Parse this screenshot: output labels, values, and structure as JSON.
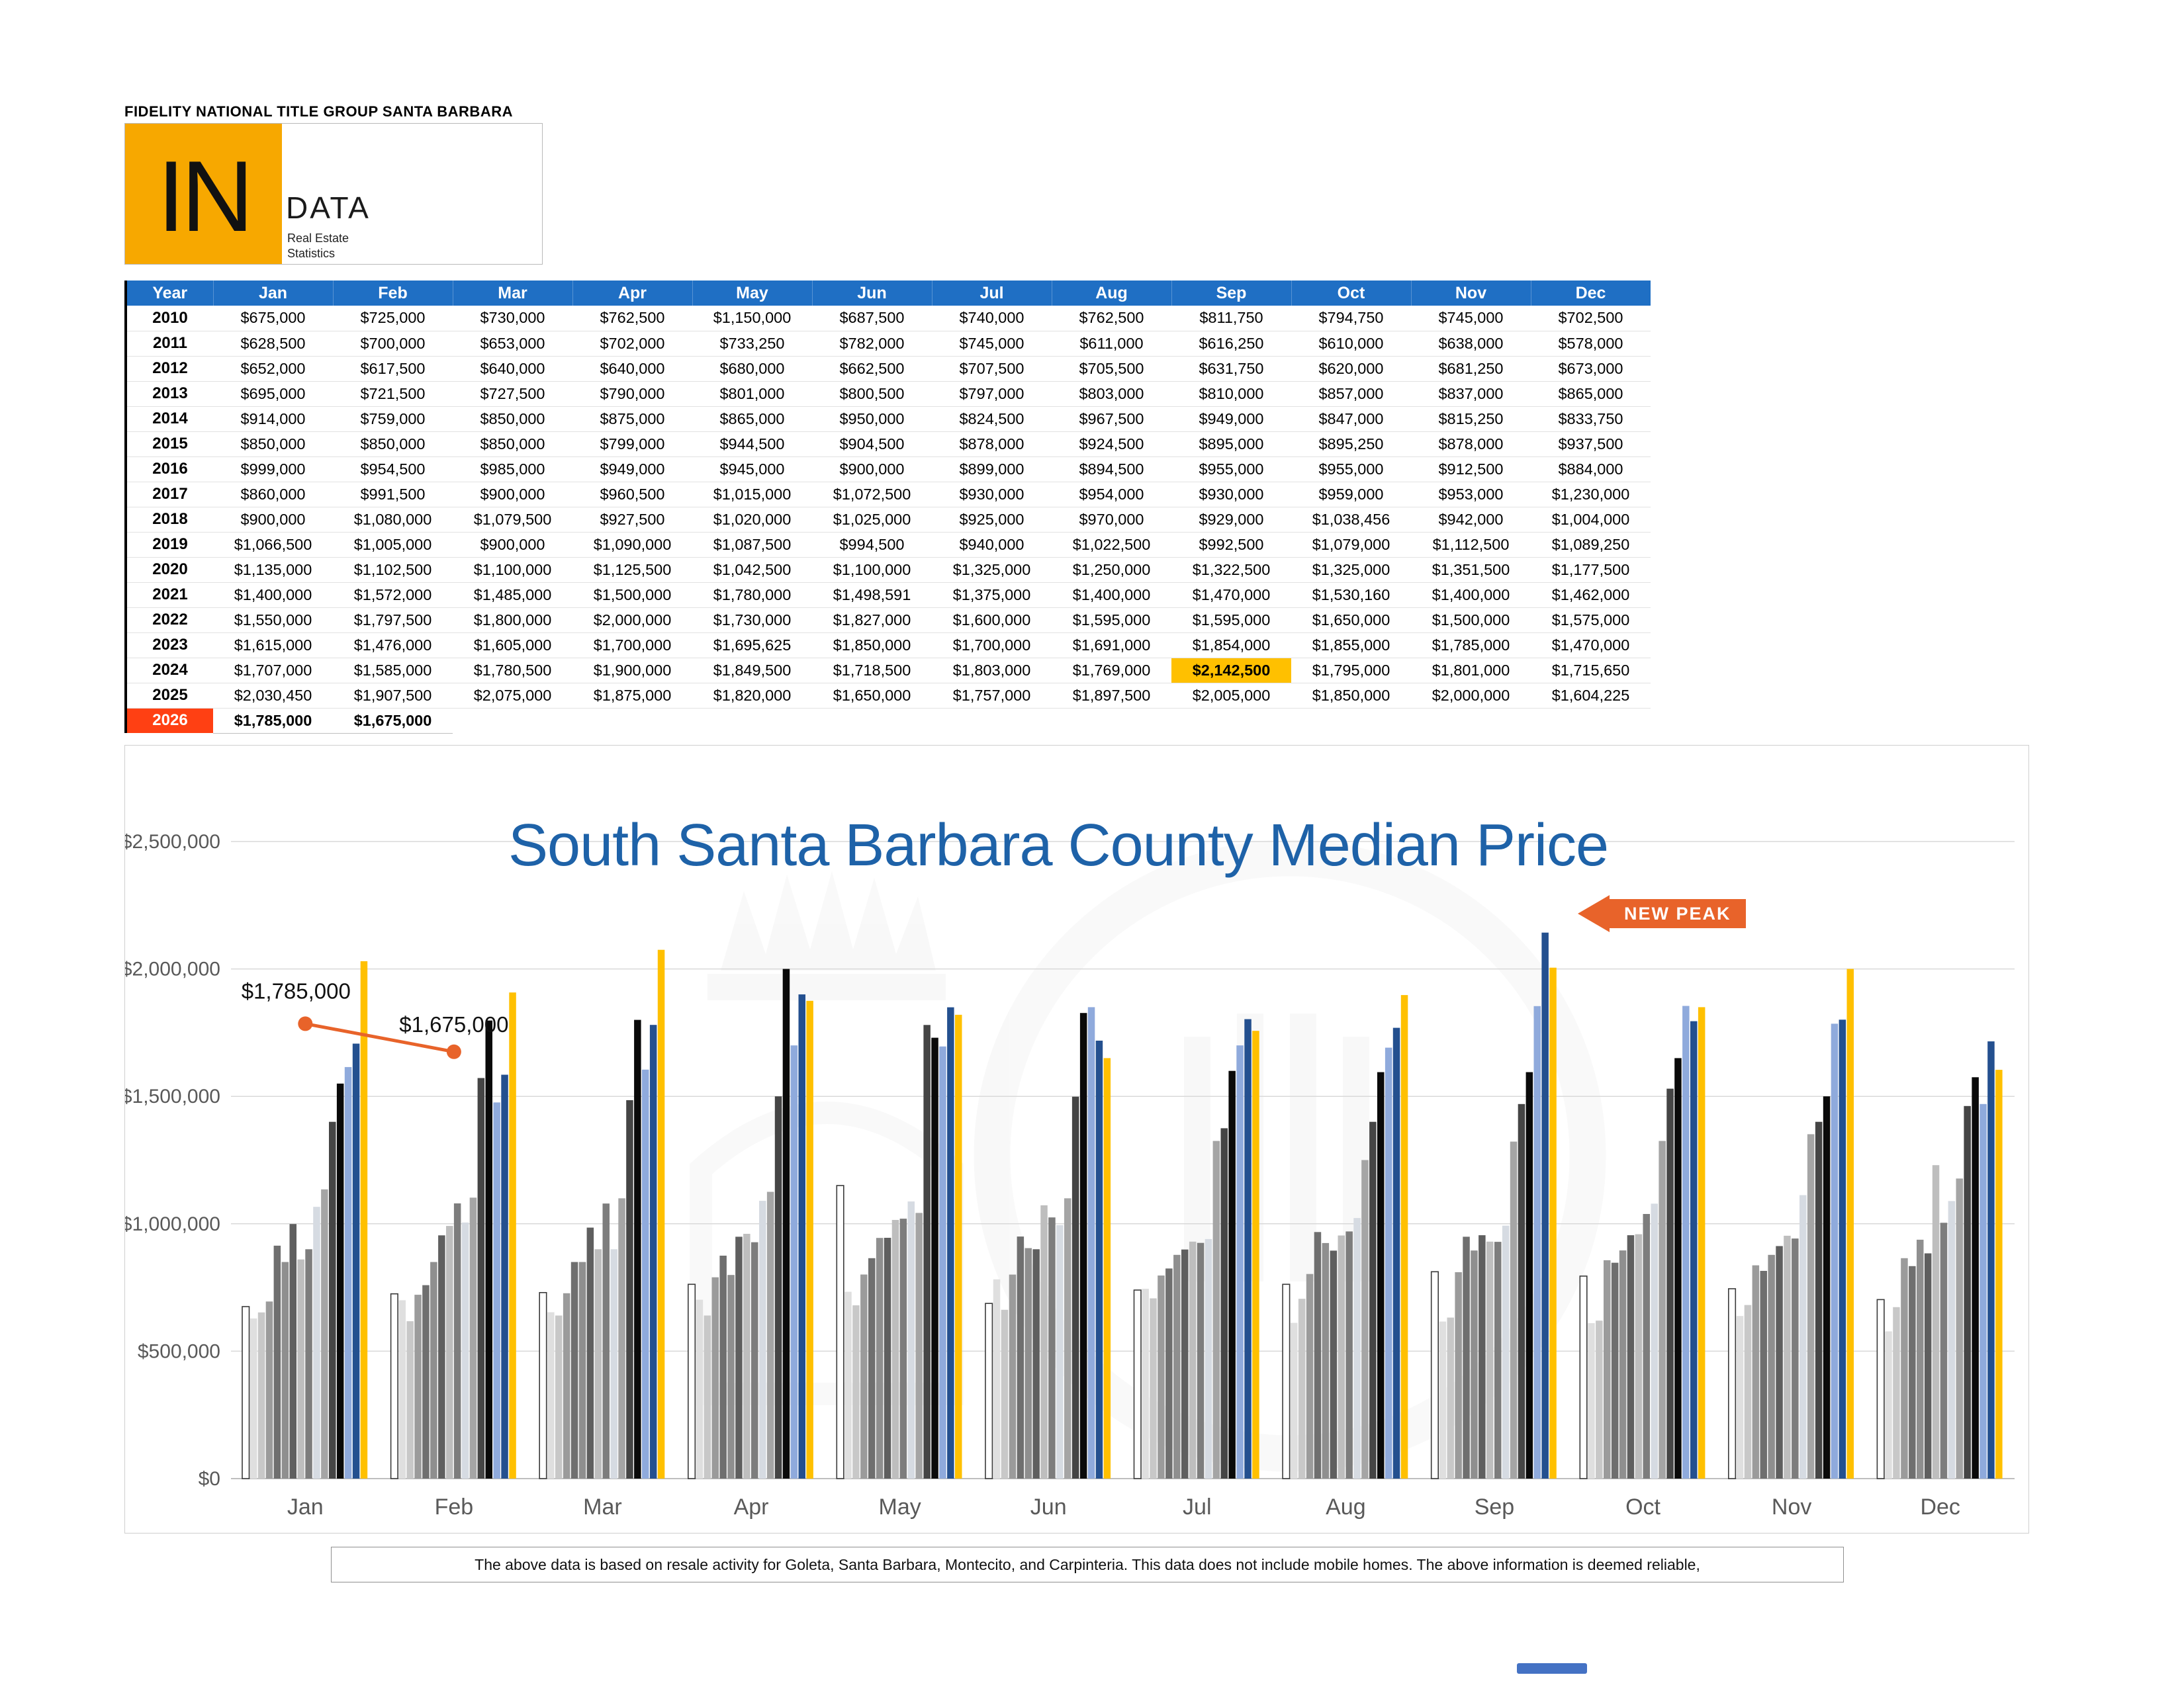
{
  "theme": {
    "header-blue": "#1F6FC4",
    "gold": "#F7A800",
    "gold-hl": "#FFC000",
    "year-red": "#FF4013",
    "title-blue": "#1E62A8",
    "accent-orange": "#E8632A"
  },
  "header": {
    "company": "FIDELITY NATIONAL TITLE GROUP SANTA BARBARA",
    "logo": {
      "initials": "IN",
      "name": "DATA",
      "tagline_line1": "Real Estate",
      "tagline_line2": "Statistics"
    }
  },
  "table": {
    "columns": [
      "Year",
      "Jan",
      "Feb",
      "Mar",
      "Apr",
      "May",
      "Jun",
      "Jul",
      "Aug",
      "Sep",
      "Oct",
      "Nov",
      "Dec"
    ],
    "highlight_cell": {
      "year": "2024",
      "month": "Sep"
    },
    "partial_row_year": "2026"
  },
  "chart_data": {
    "type": "bar",
    "title": "South Santa Barbara County Median Price",
    "categories": [
      "Jan",
      "Feb",
      "Mar",
      "Apr",
      "May",
      "Jun",
      "Jul",
      "Aug",
      "Sep",
      "Oct",
      "Nov",
      "Dec"
    ],
    "ylim": [
      0,
      2500000
    ],
    "yticks": [
      "$0",
      "$500,000",
      "$1,000,000",
      "$1,500,000",
      "$2,000,000",
      "$2,500,000"
    ],
    "grid": true,
    "legend": false,
    "annotations": {
      "new_peak_label": "NEW PEAK",
      "point_labels": [
        "$1,785,000",
        "$1,675,000"
      ]
    },
    "series": [
      {
        "name": "2010",
        "color": "#FFFFFF",
        "outline": true,
        "values": [
          675000,
          725000,
          730000,
          762500,
          1150000,
          687500,
          740000,
          762500,
          811750,
          794750,
          745000,
          702500
        ]
      },
      {
        "name": "2011",
        "color": "#DFDFDF",
        "values": [
          628500,
          700000,
          653000,
          702000,
          733250,
          782000,
          745000,
          611000,
          616250,
          610000,
          638000,
          578000
        ]
      },
      {
        "name": "2012",
        "color": "#C8C8C8",
        "values": [
          652000,
          617500,
          640000,
          640000,
          680000,
          662500,
          707500,
          705500,
          631750,
          620000,
          681250,
          673000
        ]
      },
      {
        "name": "2013",
        "color": "#9B9B9B",
        "values": [
          695000,
          721500,
          727500,
          790000,
          801000,
          800500,
          797000,
          803000,
          810000,
          857000,
          837000,
          865000
        ]
      },
      {
        "name": "2014",
        "color": "#6F6F6F",
        "values": [
          914000,
          759000,
          850000,
          875000,
          865000,
          950000,
          824500,
          967500,
          949000,
          847000,
          815250,
          833750
        ]
      },
      {
        "name": "2015",
        "color": "#8F8F8F",
        "values": [
          850000,
          850000,
          850000,
          799000,
          944500,
          904500,
          878000,
          924500,
          895000,
          895250,
          878000,
          937500
        ]
      },
      {
        "name": "2016",
        "color": "#5F5F5F",
        "values": [
          999000,
          954500,
          985000,
          949000,
          945000,
          900000,
          899000,
          894500,
          955000,
          955000,
          912500,
          884000
        ]
      },
      {
        "name": "2017",
        "color": "#BEBEBE",
        "values": [
          860000,
          991500,
          900000,
          960500,
          1015000,
          1072500,
          930000,
          954000,
          930000,
          959000,
          953000,
          1230000
        ]
      },
      {
        "name": "2018",
        "color": "#7D7D7D",
        "values": [
          900000,
          1080000,
          1079500,
          927500,
          1020000,
          1025000,
          925000,
          970000,
          929000,
          1038456,
          942000,
          1004000
        ]
      },
      {
        "name": "2019",
        "color": "#D6DBE2",
        "values": [
          1066500,
          1005000,
          900000,
          1090000,
          1087500,
          994500,
          940000,
          1022500,
          992500,
          1079000,
          1112500,
          1089250
        ]
      },
      {
        "name": "2020",
        "color": "#A5A5A5",
        "values": [
          1135000,
          1102500,
          1100000,
          1125500,
          1042500,
          1100000,
          1325000,
          1250000,
          1322500,
          1325000,
          1351500,
          1177500
        ]
      },
      {
        "name": "2021",
        "color": "#454545",
        "values": [
          1400000,
          1572000,
          1485000,
          1500000,
          1780000,
          1498591,
          1375000,
          1400000,
          1470000,
          1530160,
          1400000,
          1462000
        ]
      },
      {
        "name": "2022",
        "color": "#0A0A0A",
        "values": [
          1550000,
          1797500,
          1800000,
          2000000,
          1730000,
          1827000,
          1600000,
          1595000,
          1595000,
          1650000,
          1500000,
          1575000
        ]
      },
      {
        "name": "2023",
        "color": "#8FAADC",
        "values": [
          1615000,
          1476000,
          1605000,
          1700000,
          1695625,
          1850000,
          1700000,
          1691000,
          1854000,
          1855000,
          1785000,
          1470000
        ]
      },
      {
        "name": "2024",
        "color": "#24508F",
        "values": [
          1707000,
          1585000,
          1780500,
          1900000,
          1849500,
          1718500,
          1803000,
          1769000,
          2142500,
          1795000,
          1801000,
          1715650
        ]
      },
      {
        "name": "2025",
        "color": "#FFC000",
        "values": [
          2030450,
          1907500,
          2075000,
          1875000,
          1820000,
          1650000,
          1757000,
          1897500,
          2005000,
          1850000,
          2000000,
          1604225
        ]
      },
      {
        "name": "2026",
        "color": "#E8632A",
        "type": "line",
        "values": [
          1785000,
          1675000,
          null,
          null,
          null,
          null,
          null,
          null,
          null,
          null,
          null,
          null
        ]
      }
    ]
  },
  "footer": {
    "disclaimer": "The above data is based on resale activity for Goleta, Santa Barbara, Montecito, and Carpinteria.  This data does not include mobile homes.  The above information is deemed reliable,"
  }
}
